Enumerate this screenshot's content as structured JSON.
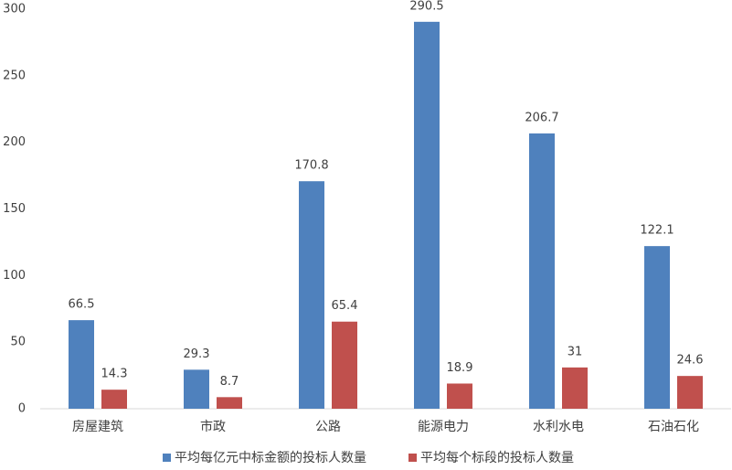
{
  "chart_data": {
    "type": "bar",
    "categories": [
      "房屋建筑",
      "市政",
      "公路",
      "能源电力",
      "水利水电",
      "石油石化"
    ],
    "series": [
      {
        "name": "平均每亿元中标金额的投标人数量",
        "color": "#4f81bd",
        "values": [
          66.5,
          29.3,
          170.8,
          290.5,
          206.7,
          122.1
        ]
      },
      {
        "name": "平均每个标段的投标人数量",
        "color": "#c0504d",
        "values": [
          14.3,
          8.7,
          65.4,
          18.9,
          31,
          24.6
        ]
      }
    ],
    "ylim": [
      0,
      300
    ],
    "yticks": [
      0,
      50,
      100,
      150,
      200,
      250,
      300
    ],
    "grid": false,
    "legend": "bottom"
  }
}
